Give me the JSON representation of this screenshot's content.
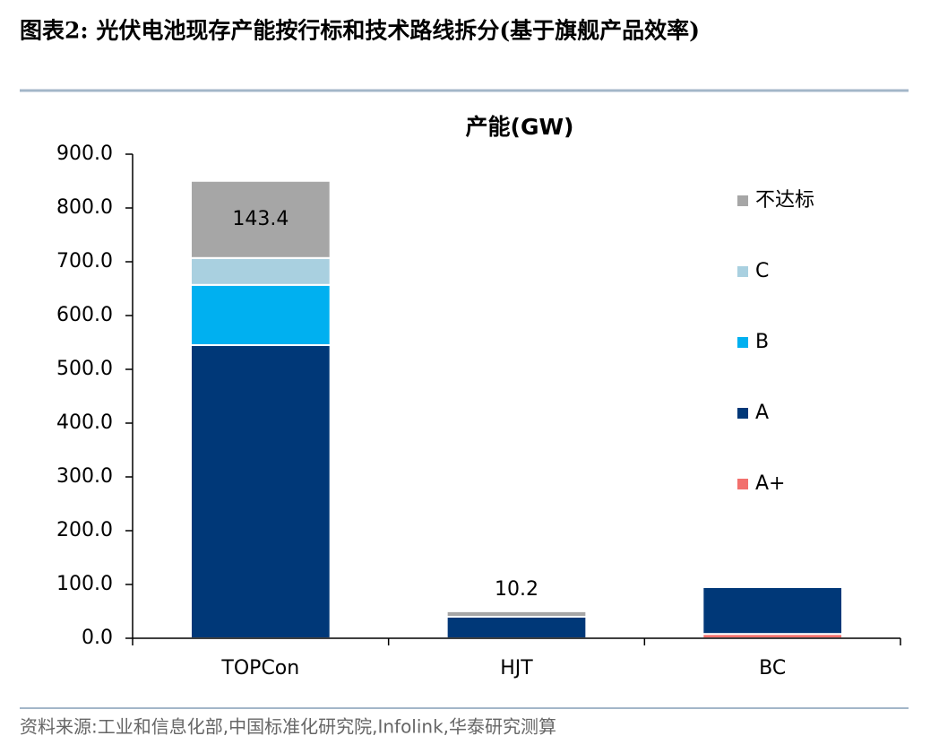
{
  "header": {
    "title": "图表2:  光伏电池现存产能按行标和技术路线拆分(基于旗舰产品效率)"
  },
  "chart_data": {
    "type": "stacked_bar",
    "title": "产能(GW)",
    "categories": [
      "TOPCon",
      "HJT",
      "BC"
    ],
    "series": [
      {
        "name": "A+",
        "color": "#f2706d",
        "values": [
          0,
          0,
          8
        ]
      },
      {
        "name": "A",
        "color": "#003878",
        "values": [
          545,
          40,
          87
        ]
      },
      {
        "name": "B",
        "color": "#00b0f0",
        "values": [
          112,
          0,
          0
        ]
      },
      {
        "name": "C",
        "color": "#a9d0e0",
        "values": [
          50,
          0,
          0
        ]
      },
      {
        "name": "不达标",
        "color": "#a6a6a6",
        "values": [
          143.4,
          10.2,
          0
        ],
        "value_labels": [
          "143.4",
          "10.2",
          null
        ]
      }
    ],
    "ylim": [
      0,
      900
    ],
    "yticks": [
      {
        "value": 0,
        "label": "0.0"
      },
      {
        "value": 100,
        "label": "100.0"
      },
      {
        "value": 200,
        "label": "200.0"
      },
      {
        "value": 300,
        "label": "300.0"
      },
      {
        "value": 400,
        "label": "400.0"
      },
      {
        "value": 500,
        "label": "500.0"
      },
      {
        "value": 600,
        "label": "600.0"
      },
      {
        "value": 700,
        "label": "700.0"
      },
      {
        "value": 800,
        "label": "800.0"
      },
      {
        "value": 900,
        "label": "900.0"
      }
    ],
    "legend": "right"
  },
  "source": "资料来源:工业和信息化部,中国标准化研究院,Infolink,华泰研究测算"
}
